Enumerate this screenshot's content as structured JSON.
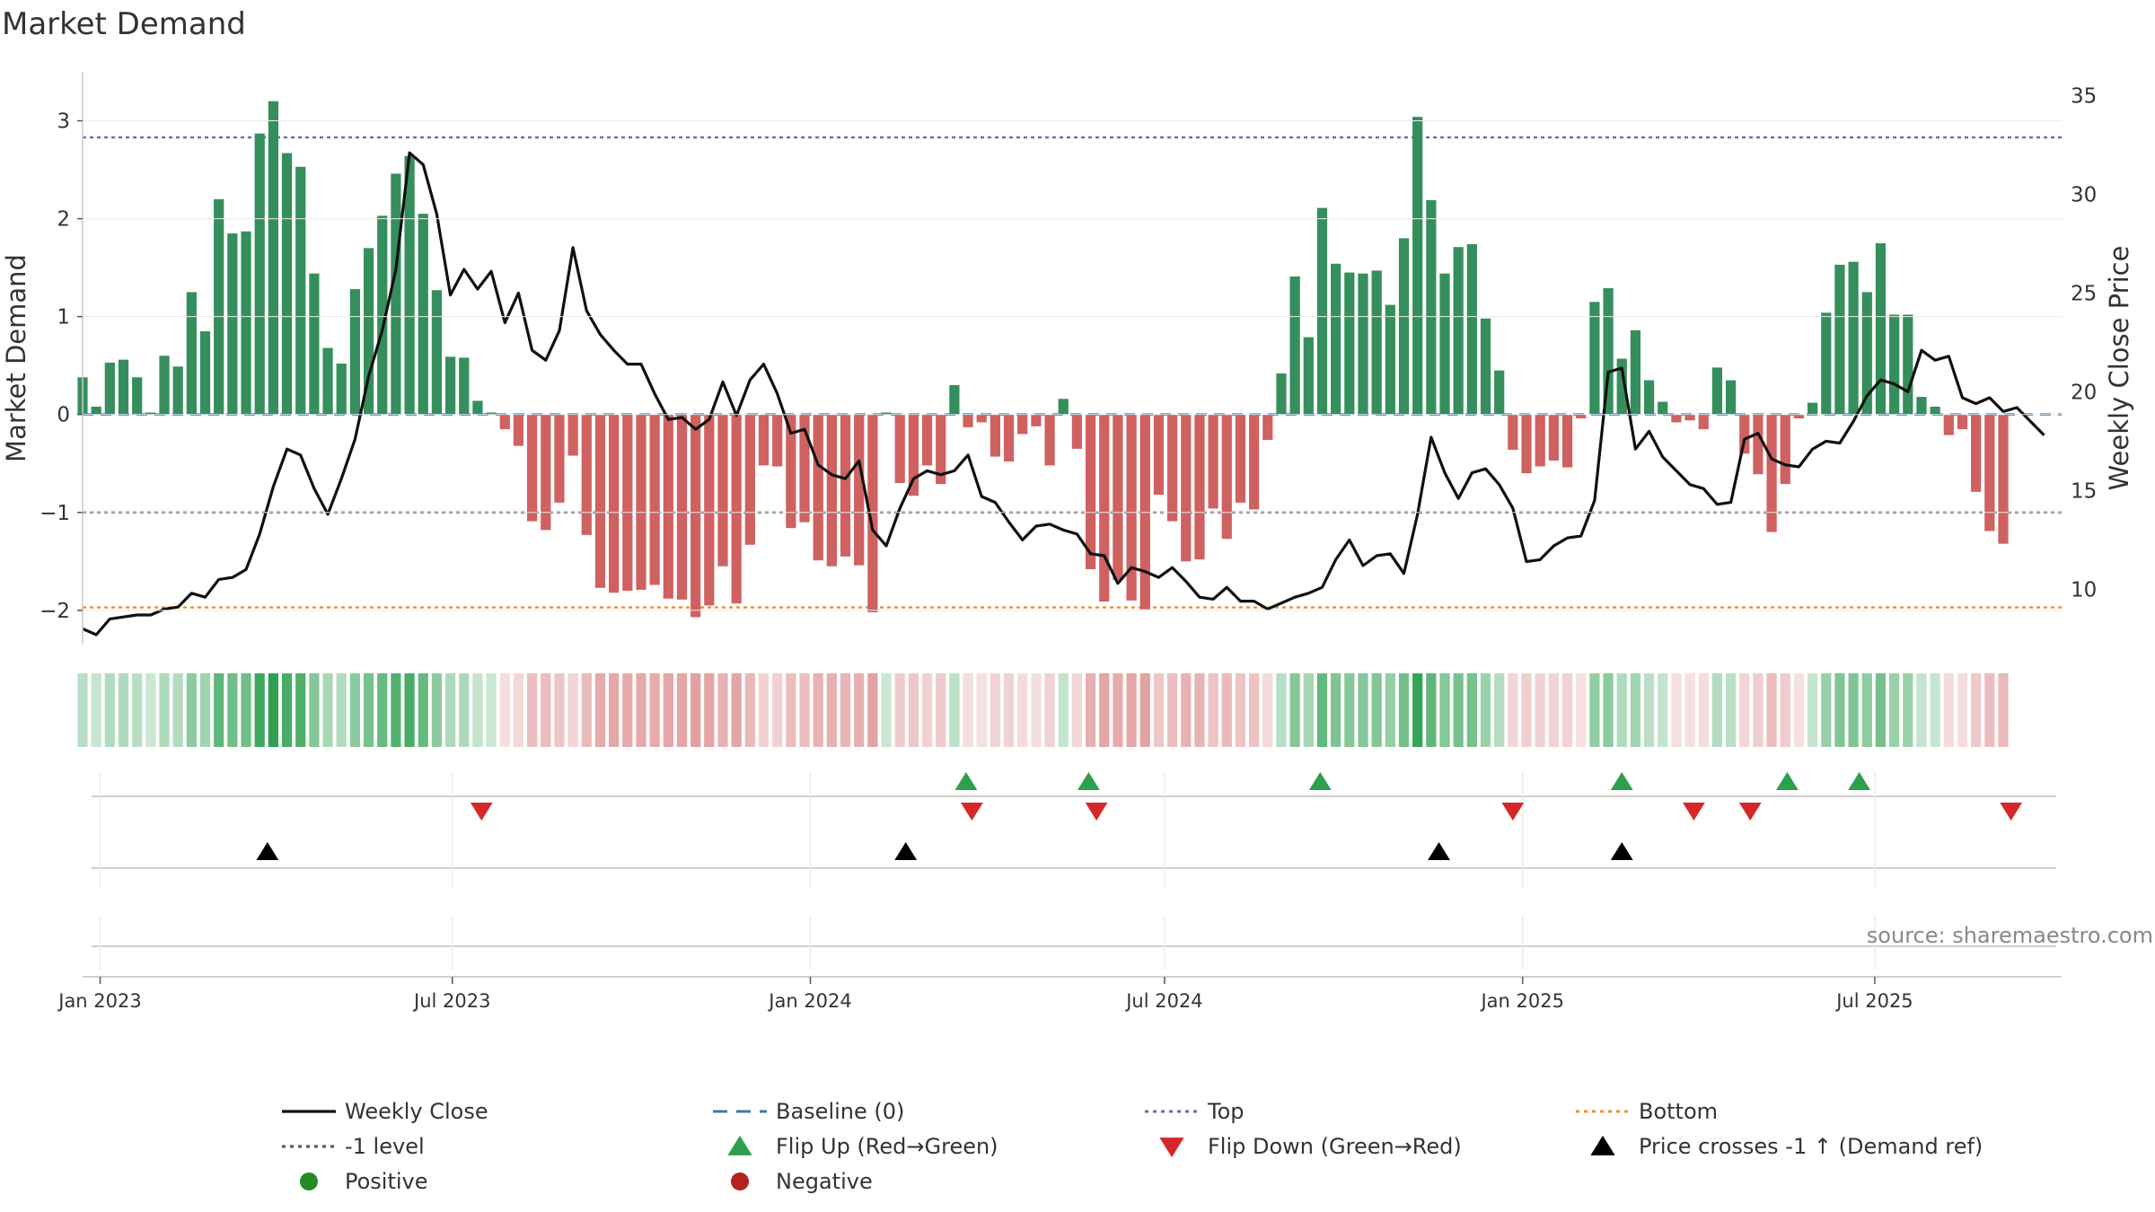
{
  "chart_data": {
    "type": "bar+line",
    "title": "Market Demand",
    "ylabel_left": "Market Demand",
    "ylabel_right": "Weekly Close Price",
    "source": "source: sharemaestro.com",
    "ylim_left": [
      -2.35,
      3.5
    ],
    "ylim_right": [
      7.2,
      36.2
    ],
    "yticks_left": [
      -2,
      -1,
      0,
      1,
      2,
      3
    ],
    "ytick_labels_left": [
      "−2",
      "−1",
      "0",
      "1",
      "2",
      "3"
    ],
    "yticks_right": [
      10,
      15,
      20,
      25,
      30,
      35
    ],
    "ytick_labels_right": [
      "10",
      "15",
      "20",
      "25",
      "30",
      "35"
    ],
    "x_start": "2022-12-23",
    "x_end": "2025-10-05",
    "date_ticks": [
      {
        "date": "2023-01-01",
        "label": "Jan 2023"
      },
      {
        "date": "2023-07-01",
        "label": "Jul 2023"
      },
      {
        "date": "2024-01-01",
        "label": "Jan 2024"
      },
      {
        "date": "2024-07-01",
        "label": "Jul 2024"
      },
      {
        "date": "2025-01-01",
        "label": "Jan 2025"
      },
      {
        "date": "2025-07-01",
        "label": "Jul 2025"
      }
    ],
    "reference_lines": [
      {
        "name": "Top",
        "value": 2.83,
        "color": "#6a6ab0"
      },
      {
        "name": "-1 level",
        "value": -1,
        "color": "#555566"
      },
      {
        "name": "Bottom",
        "value": -1.97,
        "color": "#e8922a"
      },
      {
        "name": "Baseline (0)",
        "value": 0,
        "color": "#3a78b0"
      }
    ],
    "colors": {
      "positive": "#2e8b57",
      "negative": "#cd5c5c",
      "price": "#111111",
      "flip_up": "#2ca04c",
      "flip_down": "#d62728",
      "cross": "#000000"
    },
    "first_week": "2022-12-23",
    "demand": [
      0.38,
      0.08,
      0.53,
      0.56,
      0.38,
      0.02,
      0.6,
      0.49,
      1.25,
      0.85,
      2.2,
      1.85,
      1.87,
      2.87,
      3.2,
      2.67,
      2.53,
      1.44,
      0.68,
      0.52,
      1.28,
      1.7,
      2.03,
      2.46,
      2.64,
      2.05,
      1.27,
      0.59,
      0.58,
      0.14,
      0.02,
      -0.15,
      -0.32,
      -1.09,
      -1.18,
      -0.9,
      -0.42,
      -1.23,
      -1.77,
      -1.82,
      -1.8,
      -1.79,
      -1.74,
      -1.88,
      -1.89,
      -2.07,
      -1.95,
      -1.55,
      -1.93,
      -1.33,
      -0.52,
      -0.53,
      -1.16,
      -1.1,
      -1.49,
      -1.55,
      -1.45,
      -1.54,
      -2.02,
      0.02,
      -0.7,
      -0.83,
      -0.52,
      -0.71,
      0.3,
      -0.13,
      -0.08,
      -0.43,
      -0.48,
      -0.2,
      -0.12,
      -0.52,
      0.16,
      -0.35,
      -1.58,
      -1.91,
      -1.69,
      -1.9,
      -1.99,
      -0.82,
      -1.09,
      -1.5,
      -1.48,
      -0.96,
      -1.27,
      -0.9,
      -0.97,
      -0.26,
      0.42,
      1.41,
      0.79,
      2.11,
      1.54,
      1.45,
      1.44,
      1.47,
      1.12,
      1.8,
      3.04,
      2.19,
      1.44,
      1.71,
      1.74,
      0.98,
      0.45,
      -0.36,
      -0.6,
      -0.53,
      -0.47,
      -0.54,
      -0.04,
      1.15,
      1.29,
      0.57,
      0.86,
      0.35,
      0.13,
      -0.08,
      -0.06,
      -0.15,
      0.48,
      0.35,
      -0.4,
      -0.61,
      -1.2,
      -0.71,
      -0.04,
      0.12,
      1.04,
      1.53,
      1.56,
      1.25,
      1.75,
      1.02,
      1.02,
      0.18,
      0.08,
      -0.21,
      -0.15,
      -0.79,
      -1.19,
      -1.32
    ],
    "price": [
      8.0,
      7.7,
      8.5,
      8.6,
      8.7,
      8.7,
      9.0,
      9.1,
      9.8,
      9.6,
      10.5,
      10.6,
      11.0,
      12.8,
      15.2,
      17.1,
      16.8,
      15.1,
      13.8,
      15.6,
      17.6,
      20.8,
      23.1,
      26.2,
      32.1,
      31.5,
      29.0,
      24.9,
      26.2,
      25.2,
      26.1,
      23.5,
      25.0,
      22.1,
      21.6,
      23.1,
      27.3,
      24.1,
      22.9,
      22.1,
      21.4,
      21.4,
      19.9,
      18.6,
      18.7,
      18.1,
      18.6,
      20.5,
      18.8,
      20.6,
      21.4,
      19.9,
      17.9,
      18.1,
      16.3,
      15.8,
      15.6,
      16.5,
      13.0,
      12.2,
      14.1,
      15.6,
      16.0,
      15.8,
      16.0,
      16.8,
      14.7,
      14.4,
      13.4,
      12.5,
      13.2,
      13.3,
      13.0,
      12.8,
      11.8,
      11.7,
      10.3,
      11.1,
      10.9,
      10.6,
      11.1,
      10.4,
      9.6,
      9.5,
      10.1,
      9.4,
      9.4,
      9.0,
      9.3,
      9.6,
      9.8,
      10.1,
      11.5,
      12.5,
      11.2,
      11.7,
      11.8,
      10.8,
      13.8,
      17.7,
      15.9,
      14.6,
      15.9,
      16.1,
      15.3,
      14.1,
      11.4,
      11.5,
      12.2,
      12.6,
      12.7,
      14.5,
      21.0,
      21.2,
      17.1,
      18.0,
      16.7,
      16.0,
      15.3,
      15.1,
      14.3,
      14.4,
      17.6,
      17.9,
      16.6,
      16.3,
      16.2,
      17.1,
      17.5,
      17.4,
      18.5,
      19.8,
      20.6,
      20.4,
      20.0,
      22.1,
      21.6,
      21.8,
      19.7,
      19.4,
      19.7,
      19.0,
      19.2,
      18.5,
      17.8
    ],
    "flip_up_dates": [
      "2024-03-21",
      "2024-05-23",
      "2024-09-19",
      "2025-02-21",
      "2025-05-17",
      "2025-06-23"
    ],
    "flip_down_dates": [
      "2023-07-16",
      "2024-03-24",
      "2024-05-27",
      "2024-12-27",
      "2025-03-30",
      "2025-04-28",
      "2025-09-09"
    ],
    "cross_up_dates": [
      "2023-03-28",
      "2024-02-19",
      "2024-11-19",
      "2025-02-21"
    ],
    "legend": [
      {
        "label": "Weekly Close",
        "marker": "line"
      },
      {
        "label": "Baseline (0)",
        "marker": "dash"
      },
      {
        "label": "Top",
        "marker": "dot"
      },
      {
        "label": "Bottom",
        "marker": "dot"
      },
      {
        "label": "-1 level",
        "marker": "dot"
      },
      {
        "label": "Flip Up (Red→Green)",
        "marker": "tri-up"
      },
      {
        "label": "Flip Down (Green→Red)",
        "marker": "tri-down"
      },
      {
        "label": "Price crosses -1 ↑ (Demand ref)",
        "marker": "tri-up"
      },
      {
        "label": "Positive",
        "marker": "circle"
      },
      {
        "label": "Negative",
        "marker": "circle"
      }
    ]
  }
}
